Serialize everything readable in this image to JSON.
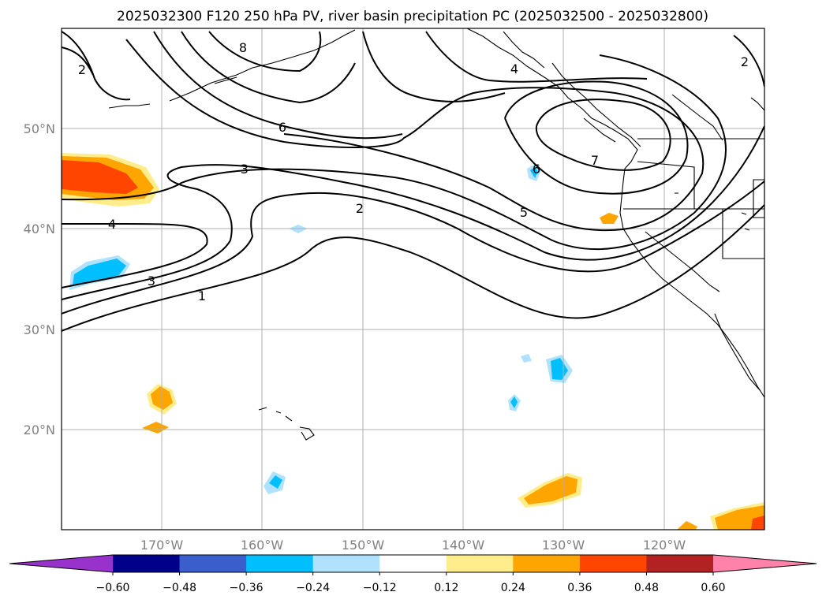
{
  "title": "2025032300 F120 250 hPa PV, river basin precipitation PC (2025032500 - 2025032800)",
  "lat_labels": [
    "50°N",
    "40°N",
    "30°N",
    "20°N"
  ],
  "lon_labels": [
    "170°W",
    "160°W",
    "150°W",
    "140°W",
    "130°W",
    "120°W"
  ],
  "colorbar": {
    "ticks": [
      "−0.60",
      "−0.48",
      "−0.36",
      "−0.24",
      "−0.12",
      "0.12",
      "0.24",
      "0.36",
      "0.48",
      "0.60"
    ],
    "colors": [
      "#9932cc",
      "#00008b",
      "#3a5fcd",
      "#00bfff",
      "#b0e2ff",
      "#ffffff",
      "#ffec8b",
      "#ffa500",
      "#ff4500",
      "#b22222",
      "#ff82ab"
    ]
  },
  "contour_labels": [
    "8",
    "2",
    "6",
    "3",
    "2",
    "4",
    "3",
    "1",
    "6",
    "7",
    "5",
    "4",
    "2"
  ],
  "colors": {
    "grid": "#b0b0b0",
    "contour": "#000000",
    "tick_label": "#808080"
  }
}
